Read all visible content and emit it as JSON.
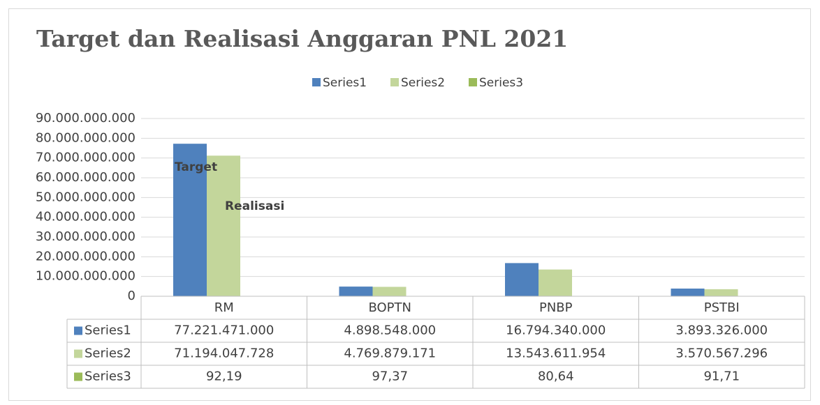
{
  "chart_data": {
    "type": "bar",
    "title": "Target dan Realisasi Anggaran PNL 2021",
    "categories": [
      "RM",
      "BOPTN",
      "PNBP",
      "PSTBI"
    ],
    "series": [
      {
        "name": "Series1",
        "color": "#4f81bd",
        "values": [
          77221471000,
          4898548000,
          16794340000,
          3893326000
        ],
        "value_labels": [
          "77.221.471.000",
          "4.898.548.000",
          "16.794.340.000",
          "3.893.326.000"
        ]
      },
      {
        "name": "Series2",
        "color": "#c3d69b",
        "values": [
          71194047728,
          4769879171,
          13543611954,
          3570567296
        ],
        "value_labels": [
          "71.194.047.728",
          "4.769.879.171",
          "13.543.611.954",
          "3.570.567.296"
        ]
      },
      {
        "name": "Series3",
        "color": "#9bbb59",
        "values": [
          92.19,
          97.37,
          80.64,
          91.71
        ],
        "value_labels": [
          "92,19",
          "97,37",
          "80,64",
          "91,71"
        ]
      }
    ],
    "ylim": [
      0,
      90000000000
    ],
    "yticks": [
      0,
      {
        "value": 10000000000,
        "label": "10.000.000.000"
      },
      {
        "value": 20000000000,
        "label": "20.000.000.000"
      },
      {
        "value": 30000000000,
        "label": "30.000.000.000"
      },
      {
        "value": 40000000000,
        "label": "40.000.000.000"
      },
      {
        "value": 50000000000,
        "label": "50.000.000.000"
      },
      {
        "value": 60000000000,
        "label": "60.000.000.000"
      },
      {
        "value": 70000000000,
        "label": "70.000.000.000"
      },
      {
        "value": 80000000000,
        "label": "80.000.000.000"
      },
      {
        "value": 90000000000,
        "label": "90.000.000.000"
      }
    ],
    "grid": true,
    "legend": "top",
    "annotations": [
      "Target",
      "Realisasi"
    ]
  }
}
